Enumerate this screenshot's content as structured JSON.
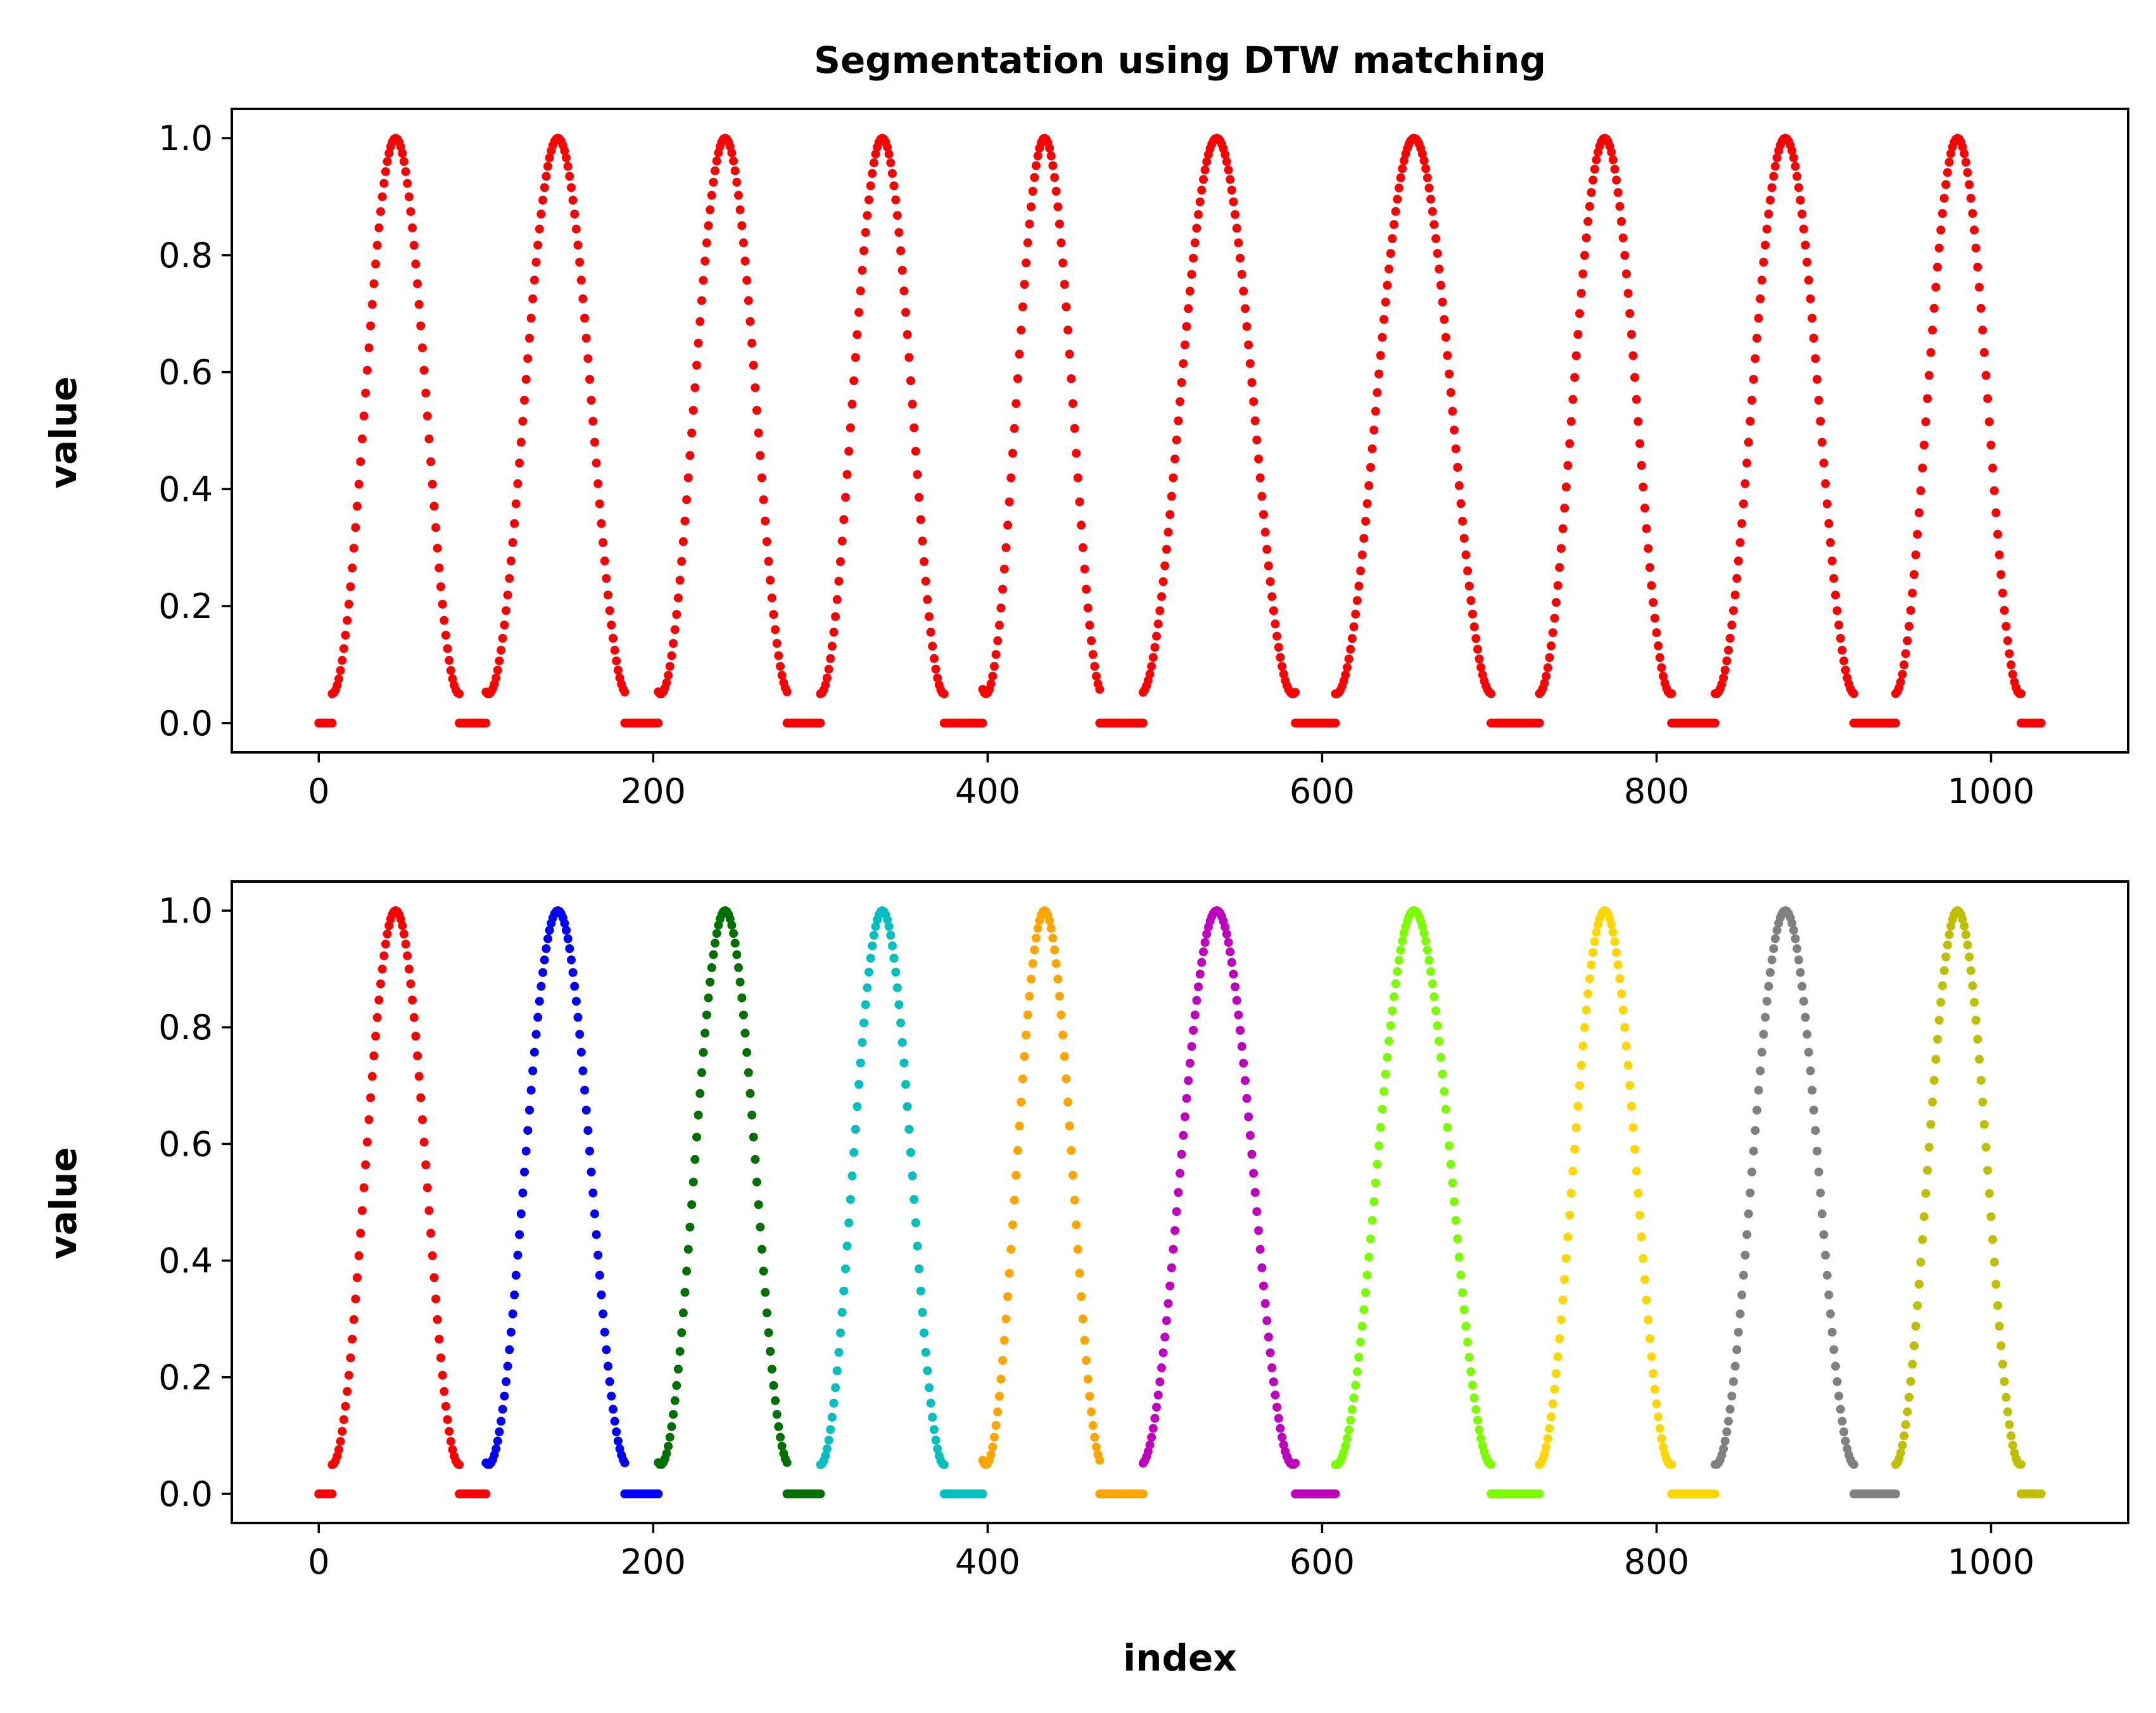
{
  "chart_data": [
    {
      "id": "top",
      "type": "scatter",
      "title": "Segmentation using DTW matching",
      "xlabel": "",
      "ylabel": "value",
      "xlim": [
        -52,
        1082
      ],
      "ylim": [
        -0.05,
        1.05
      ],
      "xticks": [
        0,
        200,
        400,
        600,
        800,
        1000
      ],
      "xtick_labels": [
        "0",
        "200",
        "400",
        "600",
        "800",
        "1000"
      ],
      "yticks": [
        0.0,
        0.2,
        0.4,
        0.6,
        0.8,
        1.0
      ],
      "ytick_labels": [
        "0.0",
        "0.2",
        "0.4",
        "0.6",
        "0.8",
        "1.0"
      ],
      "grid": false,
      "series": [
        {
          "start": 8,
          "peak": 46,
          "end": 84,
          "color": "#ff0000"
        },
        {
          "start": 100,
          "peak": 143,
          "end": 183,
          "color": "#ff0000"
        },
        {
          "start": 203,
          "peak": 243,
          "end": 280,
          "color": "#ff0000"
        },
        {
          "start": 300,
          "peak": 337,
          "end": 374,
          "color": "#ff0000"
        },
        {
          "start": 397,
          "peak": 434,
          "end": 467,
          "color": "#ff0000"
        },
        {
          "start": 493,
          "peak": 537,
          "end": 584,
          "color": "#ff0000"
        },
        {
          "start": 608,
          "peak": 655,
          "end": 701,
          "color": "#ff0000"
        },
        {
          "start": 730,
          "peak": 769,
          "end": 809,
          "color": "#ff0000"
        },
        {
          "start": 835,
          "peak": 877,
          "end": 918,
          "color": "#ff0000"
        },
        {
          "start": 943,
          "peak": 980,
          "end": 1018,
          "color": "#ff0000"
        }
      ],
      "flat_segments": [
        [
          0,
          8
        ],
        [
          84,
          100
        ],
        [
          183,
          203
        ],
        [
          280,
          300
        ],
        [
          374,
          397
        ],
        [
          467,
          493
        ],
        [
          584,
          608
        ],
        [
          701,
          730
        ],
        [
          809,
          835
        ],
        [
          918,
          943
        ],
        [
          1018,
          1030
        ]
      ],
      "flat_colors": [
        "#ff0000",
        "#ff0000",
        "#ff0000",
        "#ff0000",
        "#ff0000",
        "#ff0000",
        "#ff0000",
        "#ff0000",
        "#ff0000",
        "#ff0000",
        "#ff0000"
      ]
    },
    {
      "id": "bottom",
      "type": "scatter",
      "title": "",
      "xlabel": "index",
      "ylabel": "value",
      "xlim": [
        -52,
        1082
      ],
      "ylim": [
        -0.05,
        1.05
      ],
      "xticks": [
        0,
        200,
        400,
        600,
        800,
        1000
      ],
      "xtick_labels": [
        "0",
        "200",
        "400",
        "600",
        "800",
        "1000"
      ],
      "yticks": [
        0.0,
        0.2,
        0.4,
        0.6,
        0.8,
        1.0
      ],
      "ytick_labels": [
        "0.0",
        "0.2",
        "0.4",
        "0.6",
        "0.8",
        "1.0"
      ],
      "grid": false,
      "series": [
        {
          "start": 8,
          "peak": 46,
          "end": 84,
          "color": "#ff0000"
        },
        {
          "start": 100,
          "peak": 143,
          "end": 183,
          "color": "#0000ff"
        },
        {
          "start": 203,
          "peak": 243,
          "end": 280,
          "color": "#007000"
        },
        {
          "start": 300,
          "peak": 337,
          "end": 374,
          "color": "#00bfbf"
        },
        {
          "start": 397,
          "peak": 434,
          "end": 467,
          "color": "#ffa500"
        },
        {
          "start": 493,
          "peak": 537,
          "end": 584,
          "color": "#bf00bf"
        },
        {
          "start": 608,
          "peak": 655,
          "end": 701,
          "color": "#7cfc00"
        },
        {
          "start": 730,
          "peak": 769,
          "end": 809,
          "color": "#ffd700"
        },
        {
          "start": 835,
          "peak": 877,
          "end": 918,
          "color": "#808080"
        },
        {
          "start": 943,
          "peak": 980,
          "end": 1018,
          "color": "#bfbf00"
        }
      ],
      "flat_segments": [
        [
          0,
          8
        ],
        [
          84,
          100
        ],
        [
          183,
          203
        ],
        [
          280,
          300
        ],
        [
          374,
          397
        ],
        [
          467,
          493
        ],
        [
          584,
          608
        ],
        [
          701,
          730
        ],
        [
          809,
          835
        ],
        [
          918,
          943
        ],
        [
          1018,
          1030
        ]
      ],
      "flat_colors": [
        "#ff0000",
        "#ff0000",
        "#0000ff",
        "#007000",
        "#00bfbf",
        "#ffa500",
        "#bf00bf",
        "#7cfc00",
        "#ffd700",
        "#808080",
        "#bfbf00"
      ]
    }
  ]
}
